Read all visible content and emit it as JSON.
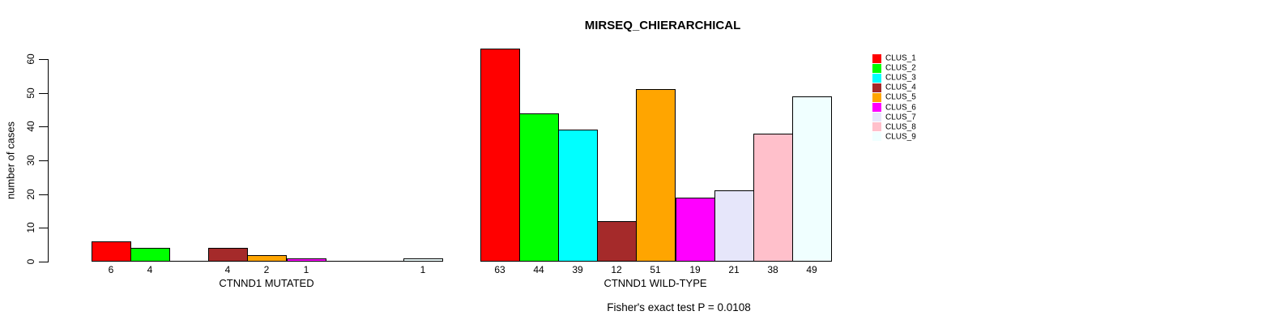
{
  "chart_data": {
    "type": "bar",
    "title": "MIRSEQ_CHIERARCHICAL",
    "ylabel": "number of cases",
    "ylim": [
      0,
      60
    ],
    "yticks": [
      0,
      10,
      20,
      30,
      40,
      50,
      60
    ],
    "grid": false,
    "bar_value_labels_shown": true,
    "note": "Fisher's exact test P = 0.0108",
    "categories": [
      "CLUS_1",
      "CLUS_2",
      "CLUS_3",
      "CLUS_4",
      "CLUS_5",
      "CLUS_6",
      "CLUS_7",
      "CLUS_8",
      "CLUS_9"
    ],
    "legend": {
      "position": "right",
      "entries": [
        {
          "label": "CLUS_1",
          "color": "#FF0000"
        },
        {
          "label": "CLUS_2",
          "color": "#00FF00"
        },
        {
          "label": "CLUS_3",
          "color": "#00FFFF"
        },
        {
          "label": "CLUS_4",
          "color": "#A52A2A"
        },
        {
          "label": "CLUS_5",
          "color": "#FFA500"
        },
        {
          "label": "CLUS_6",
          "color": "#FF00FF"
        },
        {
          "label": "CLUS_7",
          "color": "#E6E6FA"
        },
        {
          "label": "CLUS_8",
          "color": "#FFC0CB"
        },
        {
          "label": "CLUS_9",
          "color": "#F0FFFF"
        }
      ]
    },
    "groups": [
      {
        "label": "CTNND1 MUTATED",
        "values": [
          6,
          4,
          0,
          4,
          2,
          1,
          0,
          0,
          1
        ]
      },
      {
        "label": "CTNND1 WILD-TYPE",
        "values": [
          63,
          44,
          39,
          12,
          51,
          19,
          21,
          38,
          49
        ]
      }
    ],
    "colors": {
      "axis": "#000000",
      "background": "#FFFFFF",
      "bar_border": "#000000"
    }
  }
}
